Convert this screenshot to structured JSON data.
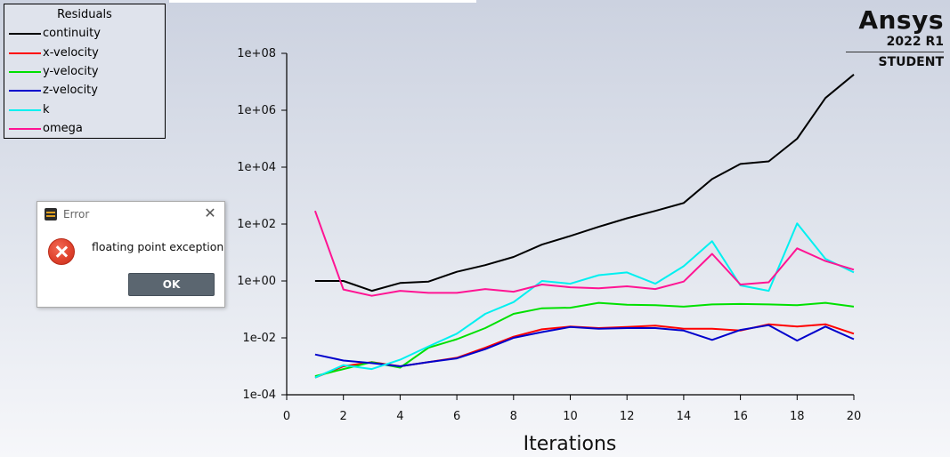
{
  "legend": {
    "title": "Residuals",
    "items": [
      {
        "label": "continuity",
        "color": "#000000"
      },
      {
        "label": "x-velocity",
        "color": "#ff0000"
      },
      {
        "label": "y-velocity",
        "color": "#00e000"
      },
      {
        "label": "z-velocity",
        "color": "#0000cc"
      },
      {
        "label": "k",
        "color": "#00f0f0"
      },
      {
        "label": "omega",
        "color": "#ff1493"
      }
    ]
  },
  "logo": {
    "brand": "Ansys",
    "version": "2022 R1",
    "edition": "STUDENT"
  },
  "dialog": {
    "title": "Error",
    "message": "floating point exception",
    "ok_label": "OK",
    "close_glyph": "✕"
  },
  "chart_data": {
    "type": "line",
    "title": "",
    "xlabel": "Iterations",
    "ylabel": "",
    "xlim": [
      0,
      20
    ],
    "ylim": [
      0.0001,
      100000000
    ],
    "yscale": "log",
    "xticks": [
      0,
      2,
      4,
      6,
      8,
      10,
      12,
      14,
      16,
      18,
      20
    ],
    "yticks": [
      0.0001,
      0.01,
      1,
      100,
      10000,
      1000000,
      100000000
    ],
    "ytick_labels": [
      "1e-04",
      "1e-02",
      "1e+00",
      "1e+02",
      "1e+04",
      "1e+06",
      "1e+08"
    ],
    "grid": false,
    "legend_position": "top-left",
    "x": [
      1,
      2,
      3,
      4,
      5,
      6,
      7,
      8,
      9,
      10,
      11,
      12,
      13,
      14,
      15,
      16,
      17,
      18,
      19,
      20
    ],
    "series": [
      {
        "name": "continuity",
        "color": "#000000",
        "values": [
          1,
          1,
          0.45,
          0.85,
          0.95,
          2.1,
          3.6,
          7,
          19,
          38,
          80,
          160,
          290,
          550,
          3800,
          13000,
          16000,
          100000,
          2700000,
          18000000
        ]
      },
      {
        "name": "x-velocity",
        "color": "#ff0000",
        "values": [
          0.0004,
          0.001,
          0.0014,
          0.001,
          0.0014,
          0.002,
          0.0045,
          0.011,
          0.02,
          0.025,
          0.022,
          0.024,
          0.027,
          0.021,
          0.021,
          0.018,
          0.03,
          0.025,
          0.03,
          0.014
        ]
      },
      {
        "name": "y-velocity",
        "color": "#00e000",
        "values": [
          0.00045,
          0.0008,
          0.0014,
          0.0009,
          0.0045,
          0.009,
          0.022,
          0.07,
          0.11,
          0.115,
          0.17,
          0.145,
          0.14,
          0.125,
          0.15,
          0.155,
          0.15,
          0.14,
          0.17,
          0.125
        ]
      },
      {
        "name": "z-velocity",
        "color": "#0000cc",
        "values": [
          0.0026,
          0.0016,
          0.0013,
          0.001,
          0.0014,
          0.0019,
          0.004,
          0.01,
          0.016,
          0.024,
          0.021,
          0.022,
          0.022,
          0.018,
          0.0085,
          0.019,
          0.028,
          0.008,
          0.025,
          0.009
        ]
      },
      {
        "name": "k",
        "color": "#00f0f0",
        "values": [
          0.0004,
          0.0011,
          0.0008,
          0.0017,
          0.005,
          0.014,
          0.07,
          0.18,
          1,
          0.8,
          1.6,
          2,
          0.8,
          3.3,
          25,
          0.7,
          0.45,
          105,
          6,
          2
        ]
      },
      {
        "name": "omega",
        "color": "#ff1493",
        "values": [
          290,
          0.5,
          0.3,
          0.45,
          0.38,
          0.38,
          0.52,
          0.42,
          0.75,
          0.6,
          0.55,
          0.65,
          0.52,
          0.95,
          9,
          0.75,
          0.9,
          14,
          5,
          2.5
        ]
      }
    ]
  }
}
